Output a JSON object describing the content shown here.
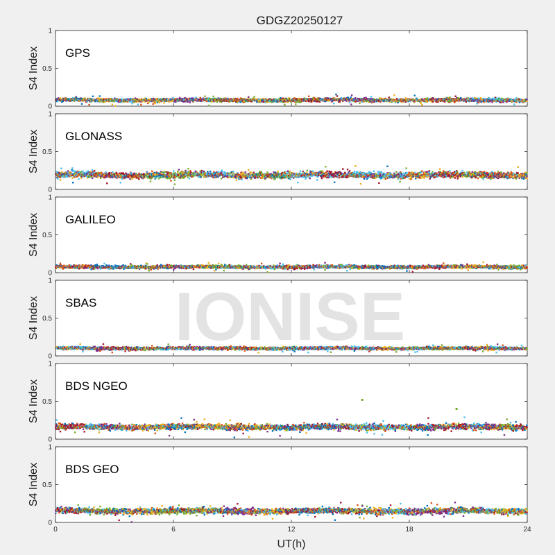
{
  "figure": {
    "title": "GDGZ20250127",
    "watermark": "IONISE",
    "xlabel": "UT(h)",
    "ylabel": "S4 Index",
    "x_ticks": [
      "0",
      "6",
      "12",
      "18",
      "24"
    ],
    "y_ticks": [
      "0",
      "0.5",
      "1"
    ]
  },
  "palette": [
    "#0072BD",
    "#D95319",
    "#EDB120",
    "#7E2F8E",
    "#77AC30",
    "#4DBEEE",
    "#A2142F"
  ],
  "chart_data": [
    {
      "type": "scatter",
      "panel": "GPS",
      "xlim": [
        0,
        24
      ],
      "ylim": [
        0,
        1
      ],
      "xlabel": "UT(h)",
      "ylabel": "S4 Index",
      "series_summary": {
        "baseline": 0.08,
        "spread": 0.025
      },
      "outliers": []
    },
    {
      "type": "scatter",
      "panel": "GLONASS",
      "xlim": [
        0,
        24
      ],
      "ylim": [
        0,
        1
      ],
      "xlabel": "UT(h)",
      "ylabel": "S4 Index",
      "series_summary": {
        "baseline": 0.19,
        "spread": 0.045
      },
      "outliers": []
    },
    {
      "type": "scatter",
      "panel": "GALILEO",
      "xlim": [
        0,
        24
      ],
      "ylim": [
        0,
        1
      ],
      "xlabel": "UT(h)",
      "ylabel": "S4 Index",
      "series_summary": {
        "baseline": 0.075,
        "spread": 0.022
      },
      "outliers": []
    },
    {
      "type": "scatter",
      "panel": "SBAS",
      "xlim": [
        0,
        24
      ],
      "ylim": [
        0,
        1
      ],
      "xlabel": "UT(h)",
      "ylabel": "S4 Index",
      "series_summary": {
        "baseline": 0.1,
        "spread": 0.02
      },
      "outliers": []
    },
    {
      "type": "scatter",
      "panel": "BDS NGEO",
      "xlim": [
        0,
        24
      ],
      "ylim": [
        0,
        1
      ],
      "xlabel": "UT(h)",
      "ylabel": "S4 Index",
      "series_summary": {
        "baseline": 0.16,
        "spread": 0.04
      },
      "outliers": [
        {
          "x": 15.6,
          "y": 0.52
        },
        {
          "x": 20.4,
          "y": 0.4
        }
      ]
    },
    {
      "type": "scatter",
      "panel": "BDS GEO",
      "xlim": [
        0,
        24
      ],
      "ylim": [
        0,
        1
      ],
      "xlabel": "UT(h)",
      "ylabel": "S4 Index",
      "series_summary": {
        "baseline": 0.15,
        "spread": 0.04
      },
      "outliers": []
    }
  ]
}
